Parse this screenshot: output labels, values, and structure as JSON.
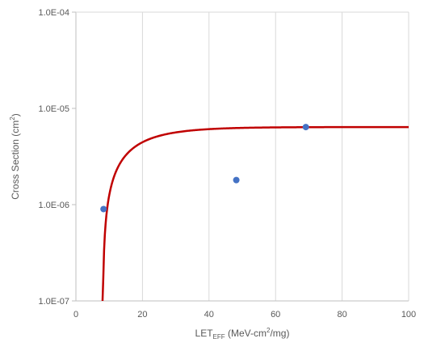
{
  "chart_data": {
    "type": "scatter",
    "title": "",
    "xlabel": {
      "main": "LET",
      "sub": "EFF",
      "rest_before_sup": " (MeV-cm",
      "sup": "2",
      "rest_after_sup": "/mg)"
    },
    "ylabel": {
      "main": "Cross Section (cm",
      "sup": "2",
      "end": ")"
    },
    "xlim": [
      0,
      100
    ],
    "x_ticks": [
      0,
      20,
      40,
      60,
      80,
      100
    ],
    "x_tick_labels": [
      "0",
      "20",
      "40",
      "60",
      "80",
      "100"
    ],
    "y_scale": "log",
    "ylim": [
      1e-07,
      0.0001
    ],
    "y_ticks": [
      1e-07,
      1e-06,
      1e-05,
      0.0001
    ],
    "y_tick_labels": [
      "1.0E-07",
      "1.0E-06",
      "1.0E-05",
      "1.0E-04"
    ],
    "grid": "vertical",
    "legend": "none",
    "series": [
      {
        "kind": "points",
        "color": "#4472C4",
        "points": [
          {
            "x": 8.3,
            "y": 9e-07
          },
          {
            "x": 48.2,
            "y": 1.8e-06
          },
          {
            "x": 69.1,
            "y": 6.4e-06
          }
        ]
      },
      {
        "kind": "weibull-fit",
        "color": "#C00000",
        "params": {
          "sat": 6.4e-06,
          "onset": 8.0,
          "width": 10.0,
          "shape": 0.95
        },
        "x_range": [
          8.0,
          100
        ]
      }
    ]
  }
}
